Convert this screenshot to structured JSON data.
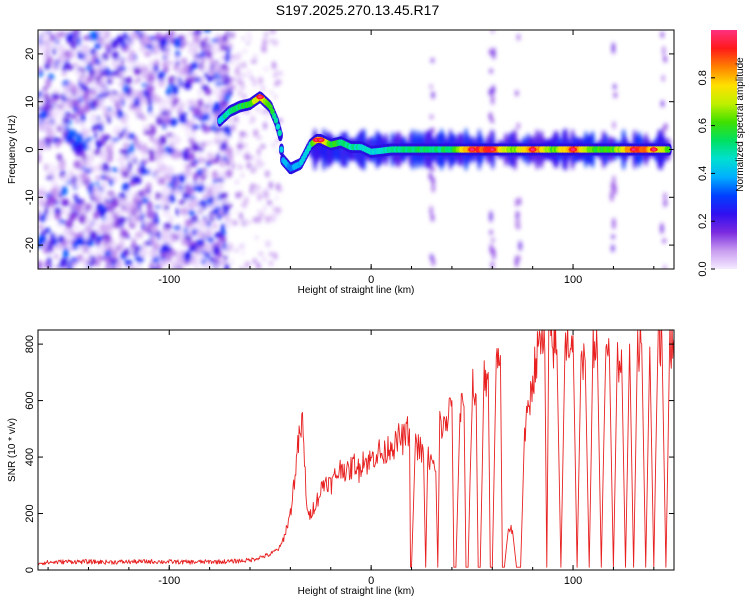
{
  "chart_data": [
    {
      "type": "heatmap",
      "title": "S197.2025.270.13.45.R17",
      "xlabel": "Height of straight line (km)",
      "ylabel": "Frequency (Hz)",
      "xlim": [
        -165,
        150
      ],
      "ylim": [
        -25,
        25
      ],
      "xticks": [
        -100,
        0,
        100
      ],
      "yticks": [
        -20,
        -10,
        0,
        10,
        20
      ],
      "colorbar": {
        "label": "Normalized spectral amplitude",
        "range": [
          0,
          1
        ],
        "ticks": [
          0.0,
          0.2,
          0.4,
          0.6,
          0.8
        ],
        "colors": [
          "#f5eaff",
          "#c89cf0",
          "#7a2ae0",
          "#3010f0",
          "#0040ff",
          "#00b0ff",
          "#00e0d0",
          "#00e060",
          "#40e000",
          "#c0f000",
          "#ffe000",
          "#ff8000",
          "#ff1a1a",
          "#ff3080"
        ]
      },
      "ridge": {
        "x": [
          -75,
          -70,
          -65,
          -60,
          -55,
          -50,
          -47,
          -45,
          -44,
          -40,
          -35,
          -30,
          -27,
          -25,
          -20,
          -15,
          -10,
          -5,
          0,
          10,
          20,
          30,
          40,
          50,
          60,
          70,
          80,
          90,
          100,
          110,
          120,
          130,
          140,
          148
        ],
        "freq": [
          6,
          8,
          9,
          9.5,
          11,
          9,
          6,
          3,
          -2,
          -4,
          -3,
          1,
          2,
          2,
          1,
          1.5,
          0.5,
          0.5,
          -0.5,
          0,
          0,
          0,
          0,
          0,
          0,
          0,
          0,
          0,
          0,
          0,
          0,
          0,
          0,
          0
        ],
        "amplitude": [
          0.45,
          0.5,
          0.55,
          0.6,
          0.8,
          0.6,
          0.5,
          0.45,
          0.4,
          0.35,
          0.4,
          0.5,
          0.8,
          0.85,
          0.6,
          0.55,
          0.5,
          0.45,
          0.45,
          0.5,
          0.55,
          0.5,
          0.55,
          0.9,
          0.9,
          0.6,
          0.9,
          0.6,
          0.9,
          0.6,
          0.6,
          0.9,
          0.8,
          0.6
        ]
      }
    },
    {
      "type": "line",
      "xlabel": "Height of straight line (km)",
      "ylabel": "SNR (10 * v/v)",
      "xlim": [
        -165,
        150
      ],
      "ylim": [
        0,
        850
      ],
      "xticks": [
        -100,
        0,
        100
      ],
      "yticks": [
        0,
        200,
        400,
        600,
        800
      ],
      "series": [
        {
          "name": "SNR",
          "color": "#e82020",
          "x": [
            -165,
            -150,
            -130,
            -110,
            -90,
            -70,
            -60,
            -55,
            -50,
            -47,
            -45,
            -43,
            -40,
            -38,
            -36,
            -34,
            -33,
            -32,
            -31,
            -30,
            -28,
            -26,
            -24,
            -22,
            -20,
            -18,
            -16,
            -14,
            -12,
            -10,
            -8,
            -6,
            -4,
            -2,
            0,
            2,
            4,
            6,
            8,
            10,
            12,
            14,
            16,
            18,
            19,
            19.5,
            20,
            22,
            24,
            26,
            27,
            28,
            30,
            32,
            33,
            34,
            36,
            38,
            40,
            41,
            42,
            44,
            46,
            47,
            48,
            50,
            52,
            53,
            54,
            56,
            58,
            59,
            60,
            62,
            64,
            65,
            66,
            68,
            70,
            72,
            74,
            76,
            78,
            80,
            82,
            84,
            86,
            87,
            88,
            90,
            92,
            94,
            96,
            98,
            100,
            102,
            104,
            106,
            108,
            110,
            112,
            114,
            116,
            118,
            120,
            122,
            124,
            126,
            128,
            130,
            132,
            134,
            136,
            138,
            140,
            142,
            144,
            146,
            148,
            150
          ],
          "values": [
            25,
            30,
            28,
            30,
            28,
            30,
            35,
            45,
            55,
            70,
            80,
            120,
            200,
            320,
            450,
            520,
            380,
            250,
            180,
            200,
            230,
            260,
            300,
            320,
            300,
            330,
            350,
            370,
            340,
            360,
            380,
            350,
            400,
            380,
            390,
            410,
            420,
            400,
            430,
            450,
            440,
            470,
            460,
            490,
            500,
            10,
            10,
            450,
            430,
            400,
            10,
            400,
            380,
            350,
            10,
            520,
            500,
            540,
            600,
            10,
            10,
            560,
            580,
            10,
            10,
            640,
            620,
            10,
            10,
            680,
            700,
            10,
            10,
            740,
            760,
            10,
            10,
            150,
            140,
            10,
            10,
            480,
            560,
            680,
            760,
            800,
            780,
            10,
            820,
            800,
            780,
            10,
            790,
            810,
            830,
            10,
            760,
            740,
            10,
            800,
            780,
            10,
            720,
            760,
            10,
            740,
            780,
            10,
            800,
            10,
            780,
            800,
            10,
            790,
            10,
            810,
            820,
            10,
            800,
            820
          ]
        }
      ]
    }
  ]
}
